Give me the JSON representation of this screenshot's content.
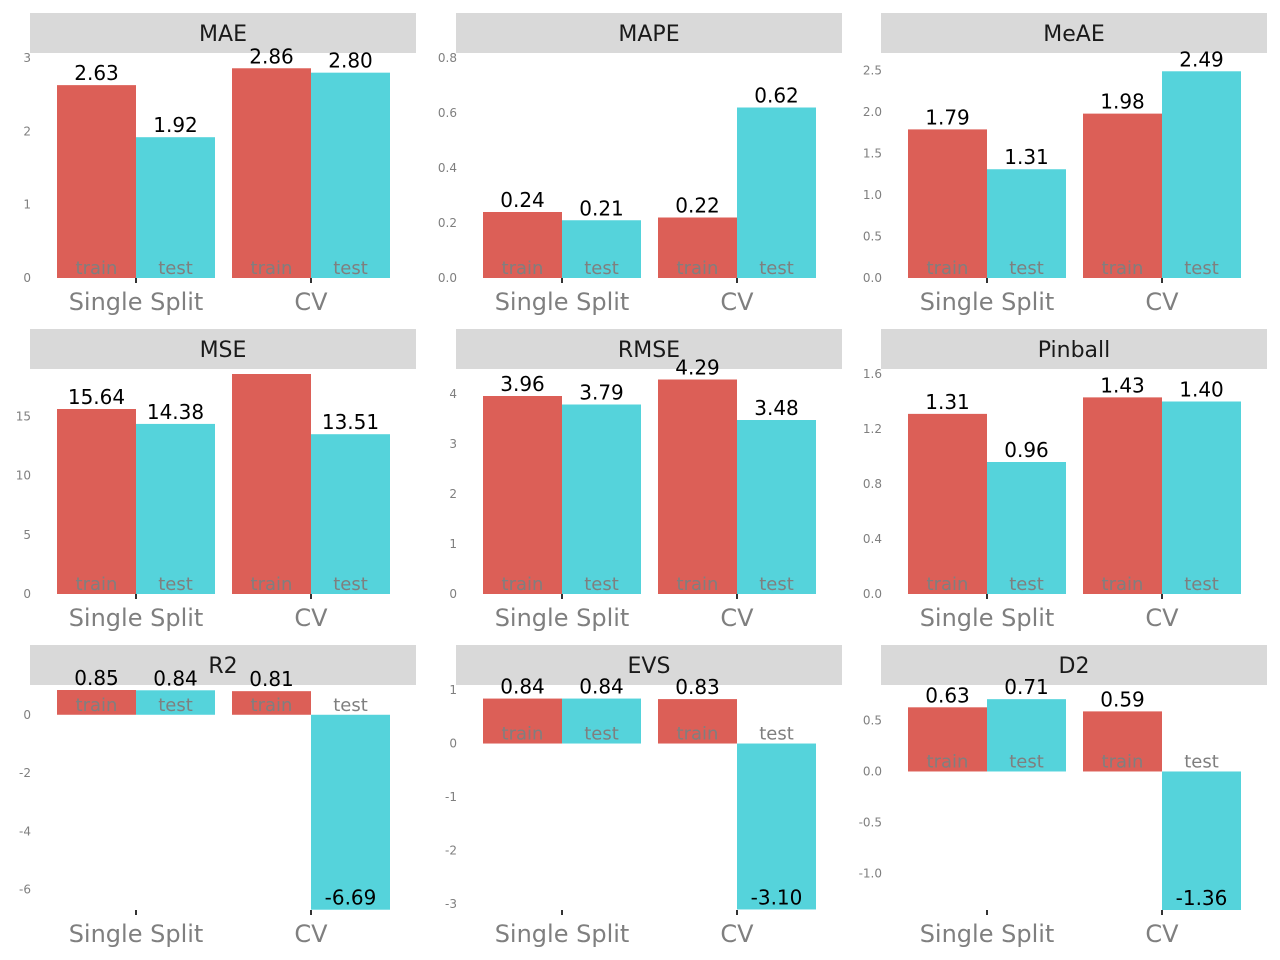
{
  "colors": {
    "train": "#dc5f57",
    "test": "#55d3db",
    "strip": "#d9d9d9",
    "tick_text": "#7f7f7f",
    "value_text": "#000000"
  },
  "chart_data": [
    {
      "type": "bar",
      "title": "MAE",
      "categories": [
        "Single Split",
        "CV"
      ],
      "series": [
        {
          "name": "train",
          "values": [
            2.63,
            2.86
          ]
        },
        {
          "name": "test",
          "values": [
            1.92,
            2.8
          ]
        }
      ],
      "value_labels": {
        "train": [
          "2.63",
          "2.86"
        ],
        "test": [
          "1.92",
          "2.80"
        ]
      },
      "ylim": [
        0,
        3.0
      ],
      "yticks": [
        "0",
        "1",
        "2",
        "3"
      ],
      "ytick_values": [
        0,
        1,
        2,
        3
      ]
    },
    {
      "type": "bar",
      "title": "MAPE",
      "categories": [
        "Single Split",
        "CV"
      ],
      "series": [
        {
          "name": "train",
          "values": [
            0.24,
            0.22
          ]
        },
        {
          "name": "test",
          "values": [
            0.21,
            0.62
          ]
        }
      ],
      "value_labels": {
        "train": [
          "0.24",
          "0.22"
        ],
        "test": [
          "0.21",
          "0.62"
        ]
      },
      "ylim": [
        0,
        0.8
      ],
      "yticks": [
        "0.0",
        "0.2",
        "0.4",
        "0.6",
        "0.8"
      ],
      "ytick_values": [
        0,
        0.2,
        0.4,
        0.6,
        0.8
      ]
    },
    {
      "type": "bar",
      "title": "MeAE",
      "categories": [
        "Single Split",
        "CV"
      ],
      "series": [
        {
          "name": "train",
          "values": [
            1.79,
            1.98
          ]
        },
        {
          "name": "test",
          "values": [
            1.31,
            2.49
          ]
        }
      ],
      "value_labels": {
        "train": [
          "1.79",
          "1.98"
        ],
        "test": [
          "1.31",
          "2.49"
        ]
      },
      "ylim": [
        0,
        2.65
      ],
      "yticks": [
        "0.0",
        "0.5",
        "1.0",
        "1.5",
        "2.0",
        "2.5"
      ],
      "ytick_values": [
        0,
        0.5,
        1.0,
        1.5,
        2.0,
        2.5
      ]
    },
    {
      "type": "bar",
      "title": "MSE",
      "categories": [
        "Single Split",
        "CV"
      ],
      "series": [
        {
          "name": "train",
          "values": [
            15.64,
            18.6
          ]
        },
        {
          "name": "test",
          "values": [
            14.38,
            13.51
          ]
        }
      ],
      "value_labels": {
        "train": [
          "15.64",
          ""
        ],
        "test": [
          "14.38",
          "13.51"
        ]
      },
      "ylim": [
        0,
        18.6
      ],
      "yticks": [
        "0",
        "5",
        "10",
        "15"
      ],
      "ytick_values": [
        0,
        5,
        10,
        15
      ]
    },
    {
      "type": "bar",
      "title": "RMSE",
      "categories": [
        "Single Split",
        "CV"
      ],
      "series": [
        {
          "name": "train",
          "values": [
            3.96,
            4.29
          ]
        },
        {
          "name": "test",
          "values": [
            3.79,
            3.48
          ]
        }
      ],
      "value_labels": {
        "train": [
          "3.96",
          "4.29"
        ],
        "test": [
          "3.79",
          "3.48"
        ]
      },
      "ylim": [
        0,
        4.4
      ],
      "yticks": [
        "0",
        "1",
        "2",
        "3",
        "4"
      ],
      "ytick_values": [
        0,
        1,
        2,
        3,
        4
      ]
    },
    {
      "type": "bar",
      "title": "Pinball",
      "categories": [
        "Single Split",
        "CV"
      ],
      "series": [
        {
          "name": "train",
          "values": [
            1.31,
            1.43
          ]
        },
        {
          "name": "test",
          "values": [
            0.96,
            1.4
          ]
        }
      ],
      "value_labels": {
        "train": [
          "1.31",
          "1.43"
        ],
        "test": [
          "0.96",
          "1.40"
        ]
      },
      "ylim": [
        0,
        1.6
      ],
      "yticks": [
        "0.0",
        "0.4",
        "0.8",
        "1.2",
        "1.6"
      ],
      "ytick_values": [
        0,
        0.4,
        0.8,
        1.2,
        1.6
      ]
    },
    {
      "type": "bar",
      "title": "R2",
      "categories": [
        "Single Split",
        "CV"
      ],
      "series": [
        {
          "name": "train",
          "values": [
            0.85,
            0.81
          ]
        },
        {
          "name": "test",
          "values": [
            0.84,
            -6.69
          ]
        }
      ],
      "value_labels": {
        "train": [
          "0.85",
          "0.81"
        ],
        "test": [
          "0.84",
          "-6.69"
        ]
      },
      "ylim": [
        -6.7,
        0.85
      ],
      "yticks": [
        "-6",
        "-4",
        "-2",
        "0"
      ],
      "ytick_values": [
        -6,
        -4,
        -2,
        0
      ]
    },
    {
      "type": "bar",
      "title": "EVS",
      "categories": [
        "Single Split",
        "CV"
      ],
      "series": [
        {
          "name": "train",
          "values": [
            0.84,
            0.83
          ]
        },
        {
          "name": "test",
          "values": [
            0.84,
            -3.1
          ]
        }
      ],
      "value_labels": {
        "train": [
          "0.84",
          "0.83"
        ],
        "test": [
          "0.84",
          "-3.10"
        ]
      },
      "ylim": [
        -3.11,
        1.0
      ],
      "yticks": [
        "-3",
        "-2",
        "-1",
        "0",
        "1"
      ],
      "ytick_values": [
        -3,
        -2,
        -1,
        0,
        1
      ]
    },
    {
      "type": "bar",
      "title": "D2",
      "categories": [
        "Single Split",
        "CV"
      ],
      "series": [
        {
          "name": "train",
          "values": [
            0.63,
            0.59
          ]
        },
        {
          "name": "test",
          "values": [
            0.71,
            -1.36
          ]
        }
      ],
      "value_labels": {
        "train": [
          "0.63",
          "0.59"
        ],
        "test": [
          "0.71",
          "-1.36"
        ]
      },
      "ylim": [
        -1.36,
        0.8
      ],
      "yticks": [
        "-1.0",
        "-0.5",
        "0.0",
        "0.5"
      ],
      "ytick_values": [
        -1.0,
        -0.5,
        0.0,
        0.5
      ]
    }
  ]
}
